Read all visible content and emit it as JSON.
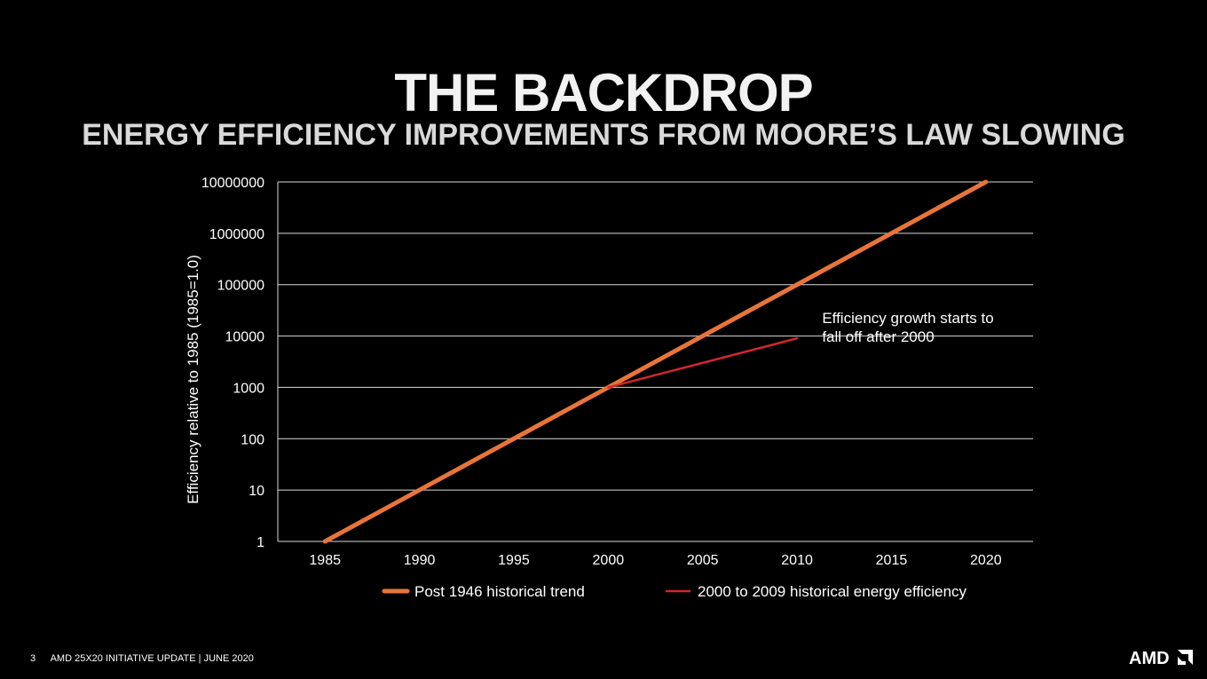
{
  "slide": {
    "title": "THE BACKDROP",
    "subtitle": "ENERGY EFFICIENCY IMPROVEMENTS FROM MOORE’S LAW SLOWING"
  },
  "footer": {
    "page_number": "3",
    "text": "AMD 25X20 INITIATIVE UPDATE  |  JUNE 2020",
    "logo_text": "AMD"
  },
  "colors": {
    "background": "#000000",
    "trend": "#e9743a",
    "efficiency": "#d22630",
    "gridline": "#d9d9d9"
  },
  "chart_data": {
    "type": "line",
    "title": "",
    "xlabel": "",
    "ylabel": "Efficiency relative to 1985 (1985=1.0)",
    "yscale": "log",
    "ylim": [
      1,
      10000000
    ],
    "xlim": [
      1982.5,
      2022.5
    ],
    "x_ticks": [
      1985,
      1990,
      1995,
      2000,
      2005,
      2010,
      2015,
      2020
    ],
    "y_ticks": [
      "1",
      "10",
      "100",
      "1000",
      "10000",
      "100000",
      "1000000",
      "10000000"
    ],
    "grid": true,
    "legend_position": "bottom",
    "series": [
      {
        "name": "Post 1946 historical trend",
        "color": "#e9743a",
        "x": [
          1985,
          2020
        ],
        "y": [
          1,
          10000000
        ]
      },
      {
        "name": "2000 to 2009 historical energy efficiency",
        "color": "#d22630",
        "x": [
          2000,
          2010
        ],
        "y": [
          1000,
          9000
        ]
      }
    ],
    "annotation": {
      "text_line1": "Efficiency growth starts to",
      "text_line2": "fall off after 2000",
      "x": 2011,
      "y": 12000
    }
  }
}
